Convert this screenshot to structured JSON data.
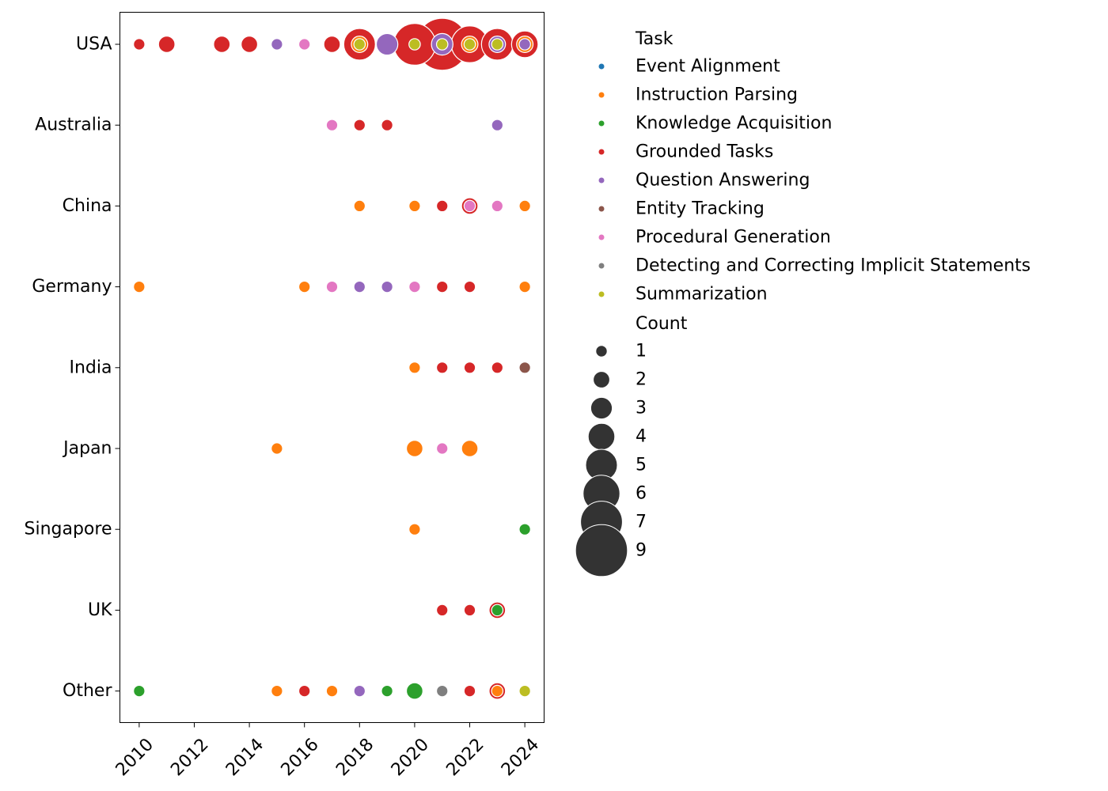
{
  "chart_data": {
    "type": "scatter",
    "xlabel": "",
    "ylabel": "",
    "xlim": [
      2009.3,
      2024.7
    ],
    "xticks": [
      2010,
      2012,
      2014,
      2016,
      2018,
      2020,
      2022,
      2024
    ],
    "categories": [
      "USA",
      "Australia",
      "China",
      "Germany",
      "India",
      "Japan",
      "Singapore",
      "UK",
      "Other"
    ],
    "grid": false,
    "legend": {
      "placement": "outside-right",
      "hue_title": "Task",
      "size_title": "Count",
      "tasks": [
        {
          "name": "Event Alignment",
          "color": "#1f77b4"
        },
        {
          "name": "Instruction Parsing",
          "color": "#ff7f0e"
        },
        {
          "name": "Knowledge Acquisition",
          "color": "#2ca02c"
        },
        {
          "name": "Grounded Tasks",
          "color": "#d62728"
        },
        {
          "name": "Question Answering",
          "color": "#9467bd"
        },
        {
          "name": "Entity Tracking",
          "color": "#8c564b"
        },
        {
          "name": "Procedural Generation",
          "color": "#e377c2"
        },
        {
          "name": "Detecting and Correcting Implicit Statements",
          "color": "#7f7f7f"
        },
        {
          "name": "Summarization",
          "color": "#bcbd22"
        }
      ],
      "sizes": [
        1,
        2,
        3,
        4,
        5,
        6,
        7,
        9
      ]
    },
    "points": [
      {
        "country": "USA",
        "year": 2010,
        "task": "Grounded Tasks",
        "count": 1
      },
      {
        "country": "USA",
        "year": 2011,
        "task": "Grounded Tasks",
        "count": 2
      },
      {
        "country": "USA",
        "year": 2013,
        "task": "Grounded Tasks",
        "count": 2
      },
      {
        "country": "USA",
        "year": 2014,
        "task": "Grounded Tasks",
        "count": 2
      },
      {
        "country": "USA",
        "year": 2015,
        "task": "Question Answering",
        "count": 1
      },
      {
        "country": "USA",
        "year": 2016,
        "task": "Procedural Generation",
        "count": 1
      },
      {
        "country": "USA",
        "year": 2017,
        "task": "Grounded Tasks",
        "count": 2
      },
      {
        "country": "USA",
        "year": 2018,
        "task": "Grounded Tasks",
        "count": 5
      },
      {
        "country": "USA",
        "year": 2018,
        "task": "Instruction Parsing",
        "count": 2
      },
      {
        "country": "USA",
        "year": 2018,
        "task": "Summarization",
        "count": 1
      },
      {
        "country": "USA",
        "year": 2019,
        "task": "Question Answering",
        "count": 3
      },
      {
        "country": "USA",
        "year": 2020,
        "task": "Grounded Tasks",
        "count": 7
      },
      {
        "country": "USA",
        "year": 2020,
        "task": "Summarization",
        "count": 1
      },
      {
        "country": "USA",
        "year": 2021,
        "task": "Grounded Tasks",
        "count": 9
      },
      {
        "country": "USA",
        "year": 2021,
        "task": "Question Answering",
        "count": 3
      },
      {
        "country": "USA",
        "year": 2021,
        "task": "Summarization",
        "count": 1
      },
      {
        "country": "USA",
        "year": 2022,
        "task": "Grounded Tasks",
        "count": 6
      },
      {
        "country": "USA",
        "year": 2022,
        "task": "Instruction Parsing",
        "count": 2
      },
      {
        "country": "USA",
        "year": 2022,
        "task": "Summarization",
        "count": 1
      },
      {
        "country": "USA",
        "year": 2023,
        "task": "Grounded Tasks",
        "count": 5
      },
      {
        "country": "USA",
        "year": 2023,
        "task": "Question Answering",
        "count": 2
      },
      {
        "country": "USA",
        "year": 2023,
        "task": "Summarization",
        "count": 1
      },
      {
        "country": "USA",
        "year": 2024,
        "task": "Grounded Tasks",
        "count": 4
      },
      {
        "country": "USA",
        "year": 2024,
        "task": "Instruction Parsing",
        "count": 2
      },
      {
        "country": "USA",
        "year": 2024,
        "task": "Question Answering",
        "count": 1
      },
      {
        "country": "Australia",
        "year": 2017,
        "task": "Procedural Generation",
        "count": 1
      },
      {
        "country": "Australia",
        "year": 2018,
        "task": "Grounded Tasks",
        "count": 1
      },
      {
        "country": "Australia",
        "year": 2019,
        "task": "Grounded Tasks",
        "count": 1
      },
      {
        "country": "Australia",
        "year": 2023,
        "task": "Question Answering",
        "count": 1
      },
      {
        "country": "China",
        "year": 2018,
        "task": "Instruction Parsing",
        "count": 1
      },
      {
        "country": "China",
        "year": 2020,
        "task": "Instruction Parsing",
        "count": 1
      },
      {
        "country": "China",
        "year": 2021,
        "task": "Grounded Tasks",
        "count": 1
      },
      {
        "country": "China",
        "year": 2022,
        "task": "Grounded Tasks",
        "count": 2
      },
      {
        "country": "China",
        "year": 2022,
        "task": "Procedural Generation",
        "count": 1
      },
      {
        "country": "China",
        "year": 2023,
        "task": "Procedural Generation",
        "count": 1
      },
      {
        "country": "China",
        "year": 2024,
        "task": "Instruction Parsing",
        "count": 1
      },
      {
        "country": "Germany",
        "year": 2010,
        "task": "Instruction Parsing",
        "count": 1
      },
      {
        "country": "Germany",
        "year": 2016,
        "task": "Instruction Parsing",
        "count": 1
      },
      {
        "country": "Germany",
        "year": 2017,
        "task": "Procedural Generation",
        "count": 1
      },
      {
        "country": "Germany",
        "year": 2018,
        "task": "Question Answering",
        "count": 1
      },
      {
        "country": "Germany",
        "year": 2019,
        "task": "Question Answering",
        "count": 1
      },
      {
        "country": "Germany",
        "year": 2020,
        "task": "Procedural Generation",
        "count": 1
      },
      {
        "country": "Germany",
        "year": 2021,
        "task": "Grounded Tasks",
        "count": 1
      },
      {
        "country": "Germany",
        "year": 2022,
        "task": "Grounded Tasks",
        "count": 1
      },
      {
        "country": "Germany",
        "year": 2024,
        "task": "Instruction Parsing",
        "count": 1
      },
      {
        "country": "India",
        "year": 2020,
        "task": "Instruction Parsing",
        "count": 1
      },
      {
        "country": "India",
        "year": 2021,
        "task": "Grounded Tasks",
        "count": 1
      },
      {
        "country": "India",
        "year": 2022,
        "task": "Grounded Tasks",
        "count": 1
      },
      {
        "country": "India",
        "year": 2023,
        "task": "Grounded Tasks",
        "count": 1
      },
      {
        "country": "India",
        "year": 2024,
        "task": "Entity Tracking",
        "count": 1
      },
      {
        "country": "Japan",
        "year": 2015,
        "task": "Instruction Parsing",
        "count": 1
      },
      {
        "country": "Japan",
        "year": 2020,
        "task": "Instruction Parsing",
        "count": 2
      },
      {
        "country": "Japan",
        "year": 2021,
        "task": "Procedural Generation",
        "count": 1
      },
      {
        "country": "Japan",
        "year": 2022,
        "task": "Instruction Parsing",
        "count": 2
      },
      {
        "country": "Singapore",
        "year": 2020,
        "task": "Instruction Parsing",
        "count": 1
      },
      {
        "country": "Singapore",
        "year": 2024,
        "task": "Knowledge Acquisition",
        "count": 1
      },
      {
        "country": "UK",
        "year": 2021,
        "task": "Grounded Tasks",
        "count": 1
      },
      {
        "country": "UK",
        "year": 2022,
        "task": "Grounded Tasks",
        "count": 1
      },
      {
        "country": "UK",
        "year": 2023,
        "task": "Grounded Tasks",
        "count": 2
      },
      {
        "country": "UK",
        "year": 2023,
        "task": "Knowledge Acquisition",
        "count": 1
      },
      {
        "country": "Other",
        "year": 2010,
        "task": "Knowledge Acquisition",
        "count": 1
      },
      {
        "country": "Other",
        "year": 2015,
        "task": "Instruction Parsing",
        "count": 1
      },
      {
        "country": "Other",
        "year": 2016,
        "task": "Grounded Tasks",
        "count": 1
      },
      {
        "country": "Other",
        "year": 2017,
        "task": "Instruction Parsing",
        "count": 1
      },
      {
        "country": "Other",
        "year": 2018,
        "task": "Question Answering",
        "count": 1
      },
      {
        "country": "Other",
        "year": 2019,
        "task": "Knowledge Acquisition",
        "count": 1
      },
      {
        "country": "Other",
        "year": 2020,
        "task": "Knowledge Acquisition",
        "count": 2
      },
      {
        "country": "Other",
        "year": 2021,
        "task": "Detecting and Correcting Implicit Statements",
        "count": 1
      },
      {
        "country": "Other",
        "year": 2022,
        "task": "Grounded Tasks",
        "count": 1
      },
      {
        "country": "Other",
        "year": 2023,
        "task": "Grounded Tasks",
        "count": 2
      },
      {
        "country": "Other",
        "year": 2023,
        "task": "Instruction Parsing",
        "count": 1
      },
      {
        "country": "Other",
        "year": 2024,
        "task": "Summarization",
        "count": 1
      }
    ]
  }
}
